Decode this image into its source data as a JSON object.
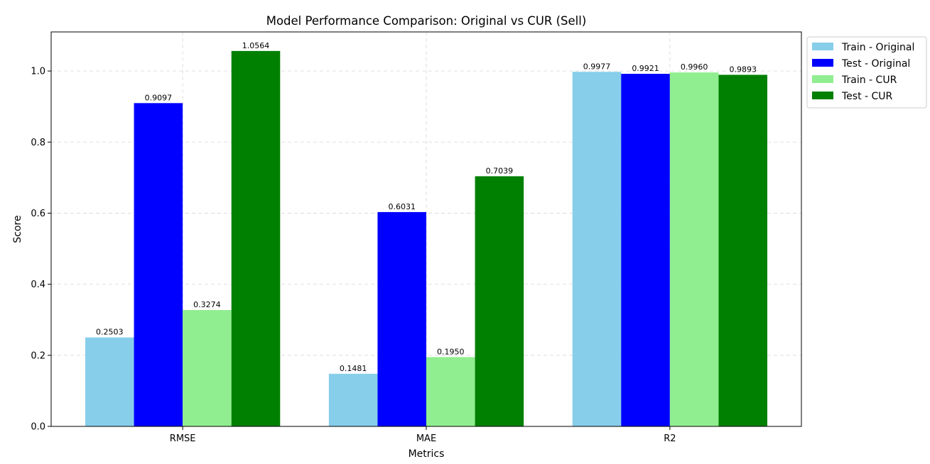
{
  "chart_data": {
    "type": "bar",
    "title": "Model Performance Comparison: Original vs CUR (Sell)",
    "xlabel": "Metrics",
    "ylabel": "Score",
    "categories": [
      "RMSE",
      "MAE",
      "R2"
    ],
    "ylim": [
      0,
      1.11
    ],
    "yticks": [
      "0.0",
      "0.2",
      "0.4",
      "0.6",
      "0.8",
      "1.0"
    ],
    "grid": true,
    "legend_position": "outside-top-right",
    "series": [
      {
        "name": "Train - Original",
        "color": "#87ceeb",
        "values": [
          0.2503,
          0.1481,
          0.9977
        ],
        "labels": [
          "0.2503",
          "0.1481",
          "0.9977"
        ]
      },
      {
        "name": "Test - Original",
        "color": "#0000ff",
        "values": [
          0.9097,
          0.6031,
          0.9921
        ],
        "labels": [
          "0.9097",
          "0.6031",
          "0.9921"
        ]
      },
      {
        "name": "Train - CUR",
        "color": "#90ee90",
        "values": [
          0.3274,
          0.195,
          0.996
        ],
        "labels": [
          "0.3274",
          "0.1950",
          "0.9960"
        ]
      },
      {
        "name": "Test - CUR",
        "color": "#008000",
        "values": [
          1.0564,
          0.7039,
          0.9893
        ],
        "labels": [
          "1.0564",
          "0.7039",
          "0.9893"
        ]
      }
    ]
  }
}
